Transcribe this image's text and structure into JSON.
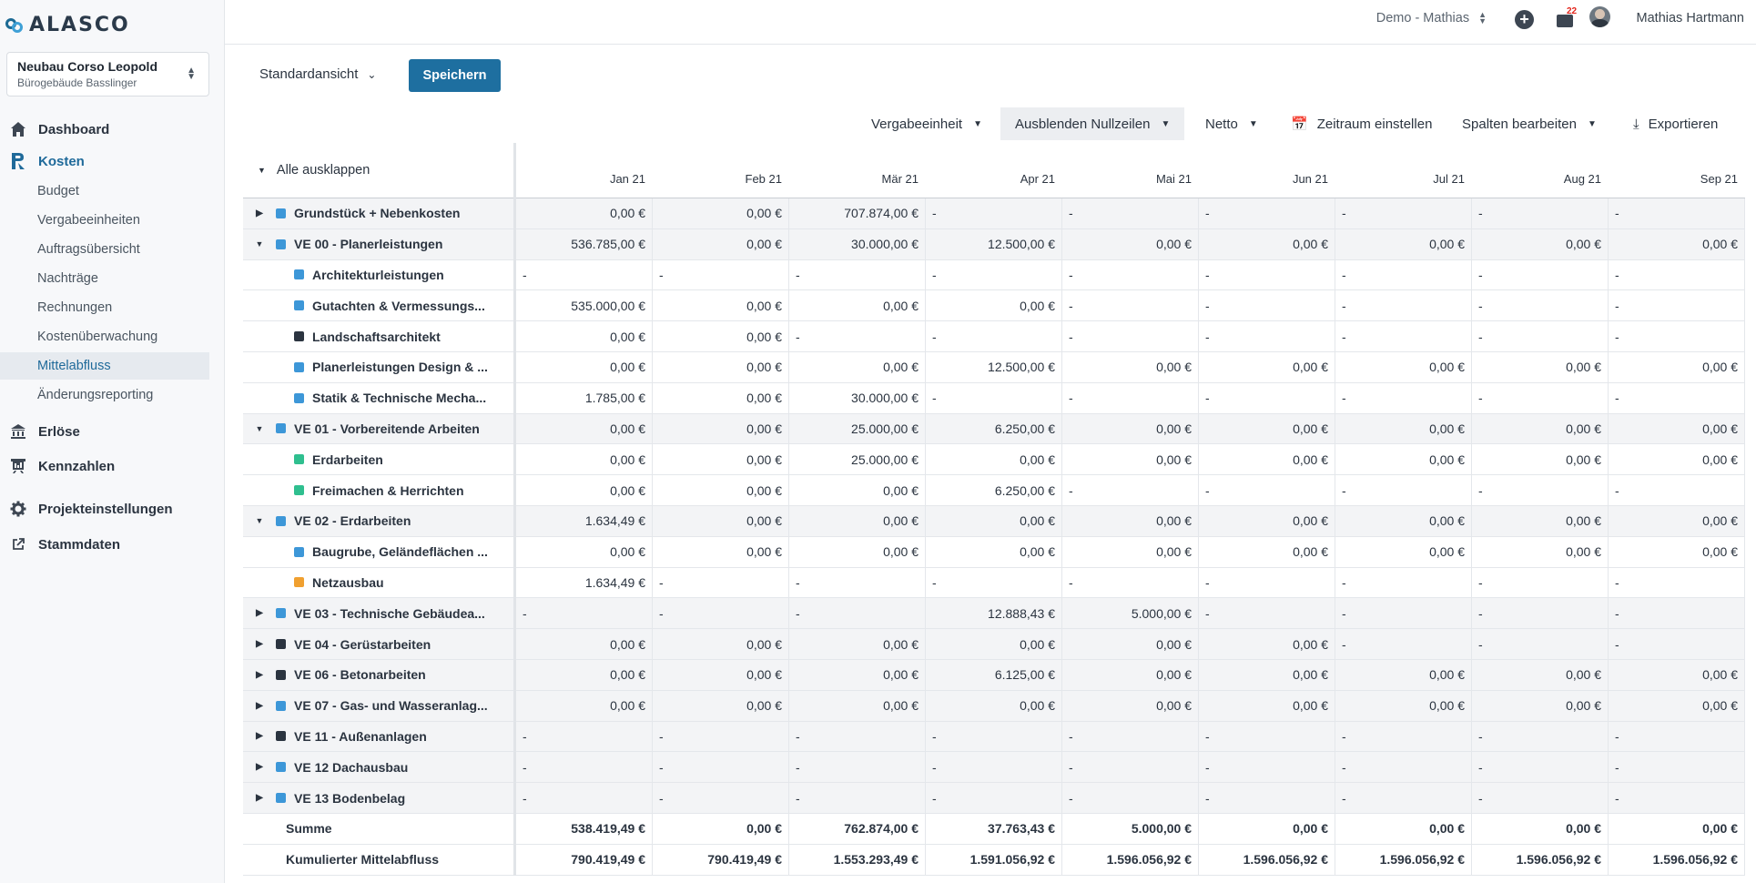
{
  "app": {
    "logo_text": "ALASCO"
  },
  "project": {
    "name": "Neubau Corso Leopold",
    "subtitle": "Bürogebäude Basslinger"
  },
  "nav": [
    {
      "label": "Dashboard",
      "type": "main",
      "icon": "home-icon"
    },
    {
      "label": "Kosten",
      "type": "main",
      "icon": "kosten-icon"
    },
    {
      "label": "Budget",
      "type": "sub"
    },
    {
      "label": "Vergabeeinheiten",
      "type": "sub"
    },
    {
      "label": "Auftragsübersicht",
      "type": "sub"
    },
    {
      "label": "Nachträge",
      "type": "sub"
    },
    {
      "label": "Rechnungen",
      "type": "sub"
    },
    {
      "label": "Kostenüberwachung",
      "type": "sub"
    },
    {
      "label": "Mittelabfluss",
      "type": "sub",
      "active": true
    },
    {
      "label": "Änderungsreporting",
      "type": "sub"
    },
    {
      "label": "Erlöse",
      "type": "main",
      "icon": "bank-icon"
    },
    {
      "label": "Kennzahlen",
      "type": "main",
      "icon": "chart-icon"
    },
    {
      "label": "Projekteinstellungen",
      "type": "main",
      "icon": "gear-icon"
    },
    {
      "label": "Stammdaten",
      "type": "main",
      "icon": "external-link-icon"
    }
  ],
  "topbar": {
    "demo_label": "Demo - Mathias",
    "notification_count": "22",
    "user_name": "Mathias Hartmann"
  },
  "toolbar": {
    "view_label": "Standardansicht",
    "save_label": "Speichern",
    "vergabe_label": "Vergabeeinheit",
    "nullzeilen_label": "Ausblenden Nullzeilen",
    "netto_label": "Netto",
    "zeitraum_label": "Zeitraum einstellen",
    "spalten_label": "Spalten bearbeiten",
    "export_label": "Exportieren"
  },
  "table": {
    "expand_all_label": "Alle ausklappen",
    "months": [
      "Jan 21",
      "Feb 21",
      "Mär 21",
      "Apr 21",
      "Mai 21",
      "Jun 21",
      "Jul 21",
      "Aug 21",
      "Sep 21"
    ],
    "colors": {
      "blue": "#3d97d8",
      "dark": "#2b3440",
      "green": "#2fbf8f",
      "orange": "#f0a030"
    },
    "rows": [
      {
        "kind": "group",
        "toggle": "collapsed",
        "color": "blue",
        "label": "Grundstück + Nebenkosten",
        "values": [
          "0,00 €",
          "0,00 €",
          "707.874,00 €",
          "-",
          "-",
          "-",
          "-",
          "-",
          "-"
        ]
      },
      {
        "kind": "group",
        "toggle": "expanded",
        "color": "blue",
        "label": "VE 00 - Planerleistungen",
        "values": [
          "536.785,00 €",
          "0,00 €",
          "30.000,00 €",
          "12.500,00 €",
          "0,00 €",
          "0,00 €",
          "0,00 €",
          "0,00 €",
          "0,00 €"
        ]
      },
      {
        "kind": "child",
        "color": "blue",
        "label": "Architekturleistungen",
        "values": [
          "-",
          "-",
          "-",
          "-",
          "-",
          "-",
          "-",
          "-",
          "-"
        ]
      },
      {
        "kind": "child",
        "color": "blue",
        "label": "Gutachten & Vermessungs...",
        "values": [
          "535.000,00 €",
          "0,00 €",
          "0,00 €",
          "0,00 €",
          "-",
          "-",
          "-",
          "-",
          "-"
        ]
      },
      {
        "kind": "child",
        "color": "dark",
        "label": "Landschaftsarchitekt",
        "values": [
          "0,00 €",
          "0,00 €",
          "-",
          "-",
          "-",
          "-",
          "-",
          "-",
          "-"
        ]
      },
      {
        "kind": "child",
        "color": "blue",
        "label": "Planerleistungen Design & ...",
        "values": [
          "0,00 €",
          "0,00 €",
          "0,00 €",
          "12.500,00 €",
          "0,00 €",
          "0,00 €",
          "0,00 €",
          "0,00 €",
          "0,00 €"
        ]
      },
      {
        "kind": "child",
        "color": "blue",
        "label": "Statik & Technische Mecha...",
        "values": [
          "1.785,00 €",
          "0,00 €",
          "30.000,00 €",
          "-",
          "-",
          "-",
          "-",
          "-",
          "-"
        ]
      },
      {
        "kind": "group",
        "toggle": "expanded",
        "color": "blue",
        "label": "VE 01 - Vorbereitende Arbeiten",
        "values": [
          "0,00 €",
          "0,00 €",
          "25.000,00 €",
          "6.250,00 €",
          "0,00 €",
          "0,00 €",
          "0,00 €",
          "0,00 €",
          "0,00 €"
        ]
      },
      {
        "kind": "child",
        "color": "green",
        "label": "Erdarbeiten",
        "values": [
          "0,00 €",
          "0,00 €",
          "25.000,00 €",
          "0,00 €",
          "0,00 €",
          "0,00 €",
          "0,00 €",
          "0,00 €",
          "0,00 €"
        ]
      },
      {
        "kind": "child",
        "color": "green",
        "label": "Freimachen & Herrichten",
        "values": [
          "0,00 €",
          "0,00 €",
          "0,00 €",
          "6.250,00 €",
          "-",
          "-",
          "-",
          "-",
          "-"
        ]
      },
      {
        "kind": "group",
        "toggle": "expanded",
        "color": "blue",
        "label": "VE 02 - Erdarbeiten",
        "values": [
          "1.634,49 €",
          "0,00 €",
          "0,00 €",
          "0,00 €",
          "0,00 €",
          "0,00 €",
          "0,00 €",
          "0,00 €",
          "0,00 €"
        ]
      },
      {
        "kind": "child",
        "color": "blue",
        "label": "Baugrube, Geländeflächen ...",
        "values": [
          "0,00 €",
          "0,00 €",
          "0,00 €",
          "0,00 €",
          "0,00 €",
          "0,00 €",
          "0,00 €",
          "0,00 €",
          "0,00 €"
        ]
      },
      {
        "kind": "child",
        "color": "orange",
        "label": "Netzausbau",
        "values": [
          "1.634,49 €",
          "-",
          "-",
          "-",
          "-",
          "-",
          "-",
          "-",
          "-"
        ]
      },
      {
        "kind": "group",
        "toggle": "collapsed",
        "color": "blue",
        "label": "VE 03 - Technische Gebäudea...",
        "values": [
          "-",
          "-",
          "-",
          "12.888,43 €",
          "5.000,00 €",
          "-",
          "-",
          "-",
          "-"
        ]
      },
      {
        "kind": "group",
        "toggle": "collapsed",
        "color": "dark",
        "label": "VE 04 - Gerüstarbeiten",
        "values": [
          "0,00 €",
          "0,00 €",
          "0,00 €",
          "0,00 €",
          "0,00 €",
          "0,00 €",
          "-",
          "-",
          "-"
        ]
      },
      {
        "kind": "group",
        "toggle": "collapsed",
        "color": "dark",
        "label": "VE 06 - Betonarbeiten",
        "values": [
          "0,00 €",
          "0,00 €",
          "0,00 €",
          "6.125,00 €",
          "0,00 €",
          "0,00 €",
          "0,00 €",
          "0,00 €",
          "0,00 €"
        ]
      },
      {
        "kind": "group",
        "toggle": "collapsed",
        "color": "blue",
        "label": "VE 07 - Gas- und Wasseranlag...",
        "values": [
          "0,00 €",
          "0,00 €",
          "0,00 €",
          "0,00 €",
          "0,00 €",
          "0,00 €",
          "0,00 €",
          "0,00 €",
          "0,00 €"
        ]
      },
      {
        "kind": "group",
        "toggle": "collapsed",
        "color": "dark",
        "label": "VE 11 - Außenanlagen",
        "values": [
          "-",
          "-",
          "-",
          "-",
          "-",
          "-",
          "-",
          "-",
          "-"
        ]
      },
      {
        "kind": "group",
        "toggle": "collapsed",
        "color": "blue",
        "label": "VE 12 Dachausbau",
        "values": [
          "-",
          "-",
          "-",
          "-",
          "-",
          "-",
          "-",
          "-",
          "-"
        ]
      },
      {
        "kind": "group",
        "toggle": "collapsed",
        "color": "blue",
        "label": "VE 13 Bodenbelag",
        "values": [
          "-",
          "-",
          "-",
          "-",
          "-",
          "-",
          "-",
          "-",
          "-"
        ]
      },
      {
        "kind": "sum",
        "label": "Summe",
        "values": [
          "538.419,49 €",
          "0,00 €",
          "762.874,00 €",
          "37.763,43 €",
          "5.000,00 €",
          "0,00 €",
          "0,00 €",
          "0,00 €",
          "0,00 €"
        ]
      },
      {
        "kind": "sum",
        "label": "Kumulierter Mittelabfluss",
        "values": [
          "790.419,49 €",
          "790.419,49 €",
          "1.553.293,49 €",
          "1.591.056,92 €",
          "1.596.056,92 €",
          "1.596.056,92 €",
          "1.596.056,92 €",
          "1.596.056,92 €",
          "1.596.056,92 €"
        ]
      }
    ]
  }
}
